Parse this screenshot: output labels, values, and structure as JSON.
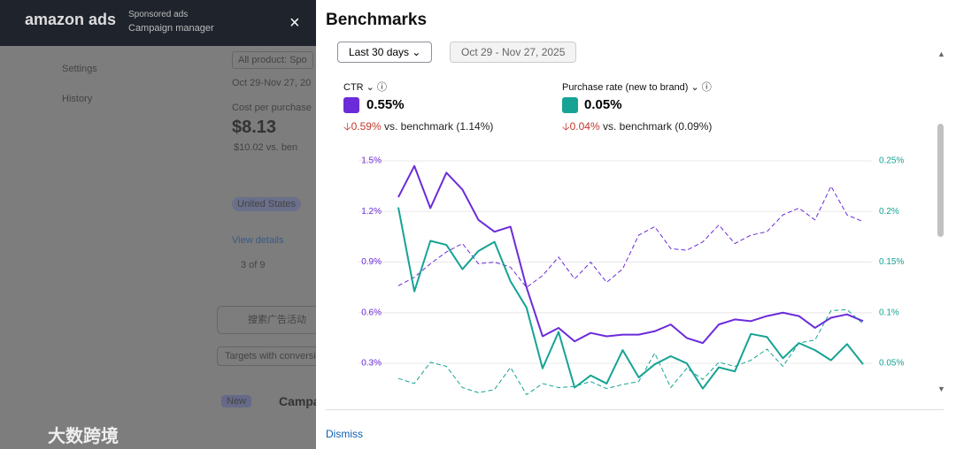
{
  "background": {
    "logo": "amazon ads",
    "product": "Sponsored ads",
    "section": "Campaign manager",
    "close": "×",
    "nav": [
      "Settings",
      "History"
    ],
    "filter": "All product: Spo",
    "date": "Oct 29-Nov 27, 20",
    "metric_label": "Cost per purchase",
    "metric_value": "$8.13",
    "metric_change": "$10.02 vs. ben",
    "country": "United States",
    "details": "View details",
    "pager": "3 of 9",
    "search": "搜索广告活动",
    "targets": "Targets with conversi",
    "tag": "New",
    "campaigns": "Campa",
    "watermark": "大数跨境"
  },
  "panel": {
    "title": "Benchmarks",
    "range_button": "Last 30 days",
    "date_range": "Oct 29 - Nov 27, 2025",
    "dismiss": "Dismiss",
    "metrics": [
      {
        "value": "0.55%",
        "change": "0.59%",
        "benchmark": "vs. benchmark (1.14%)"
      },
      {
        "value": "0.05%",
        "change": "0.04%",
        "benchmark": "vs. benchmark (0.09%)"
      }
    ]
  },
  "chart_data": {
    "type": "line",
    "categories": [
      null,
      null,
      null,
      null,
      null,
      null,
      null,
      null,
      null,
      null,
      null,
      null,
      null,
      null,
      null,
      null,
      null,
      null,
      null,
      null,
      null,
      null,
      null,
      null,
      null,
      null,
      null,
      null,
      null,
      null
    ],
    "series": [
      {
        "name": "CTR",
        "color": "#6c2bd9",
        "values": [
          1.285,
          1.47,
          1.22,
          1.43,
          1.33,
          1.15,
          1.08,
          1.11,
          0.75,
          0.46,
          0.51,
          0.43,
          0.48,
          0.46,
          0.47,
          0.47,
          0.49,
          0.53,
          0.45,
          0.42,
          0.53,
          0.56,
          0.55,
          0.58,
          0.6,
          0.58,
          0.51,
          0.57,
          0.59,
          0.55
        ]
      },
      {
        "color": "#6c2bd9",
        "dash": true,
        "values": [
          0.76,
          0.81,
          0.89,
          0.96,
          1.01,
          0.89,
          0.9,
          0.87,
          0.75,
          0.82,
          0.93,
          0.8,
          0.9,
          0.78,
          0.86,
          1.06,
          1.11,
          0.98,
          0.97,
          1.02,
          1.12,
          1.01,
          1.06,
          1.08,
          1.18,
          1.22,
          1.15,
          1.35,
          1.18,
          1.14
        ]
      },
      {
        "name": "Purchase rate (new to brand)",
        "color": "#16a394",
        "axis": "y2",
        "values": [
          0.204,
          0.121,
          0.171,
          0.167,
          0.143,
          0.161,
          0.17,
          0.131,
          0.105,
          0.045,
          0.081,
          0.026,
          0.038,
          0.03,
          0.063,
          0.036,
          0.049,
          0.057,
          0.05,
          0.025,
          0.046,
          0.042,
          0.079,
          0.076,
          0.055,
          0.07,
          0.063,
          0.053,
          0.069,
          0.049
        ]
      },
      {
        "color": "#16a394",
        "dash": true,
        "axis": "y2",
        "values": [
          0.035,
          0.03,
          0.051,
          0.047,
          0.026,
          0.021,
          0.024,
          0.046,
          0.019,
          0.03,
          0.026,
          0.027,
          0.032,
          0.025,
          0.029,
          0.032,
          0.06,
          0.026,
          0.045,
          0.034,
          0.051,
          0.047,
          0.053,
          0.064,
          0.047,
          0.07,
          0.073,
          0.102,
          0.103,
          0.089
        ]
      }
    ],
    "ylim": [
      0.09,
      1.56
    ],
    "yticks": [
      {
        "value": 0.3,
        "label": "0.3%"
      },
      {
        "value": 0.6,
        "label": "0.6%"
      },
      {
        "value": 0.9,
        "label": "0.9%"
      },
      {
        "value": 1.2,
        "label": "1.2%"
      },
      {
        "value": 1.5,
        "label": "1.5%"
      }
    ],
    "y2lim": [
      0.015,
      0.26
    ],
    "y2ticks": [
      {
        "value": 0.05,
        "label": "0.05%"
      },
      {
        "value": 0.1,
        "label": "0.1%"
      },
      {
        "value": 0.15,
        "label": "0.15%"
      },
      {
        "value": 0.2,
        "label": "0.2%"
      },
      {
        "value": 0.25,
        "label": "0.25%"
      }
    ],
    "grid": true
  }
}
